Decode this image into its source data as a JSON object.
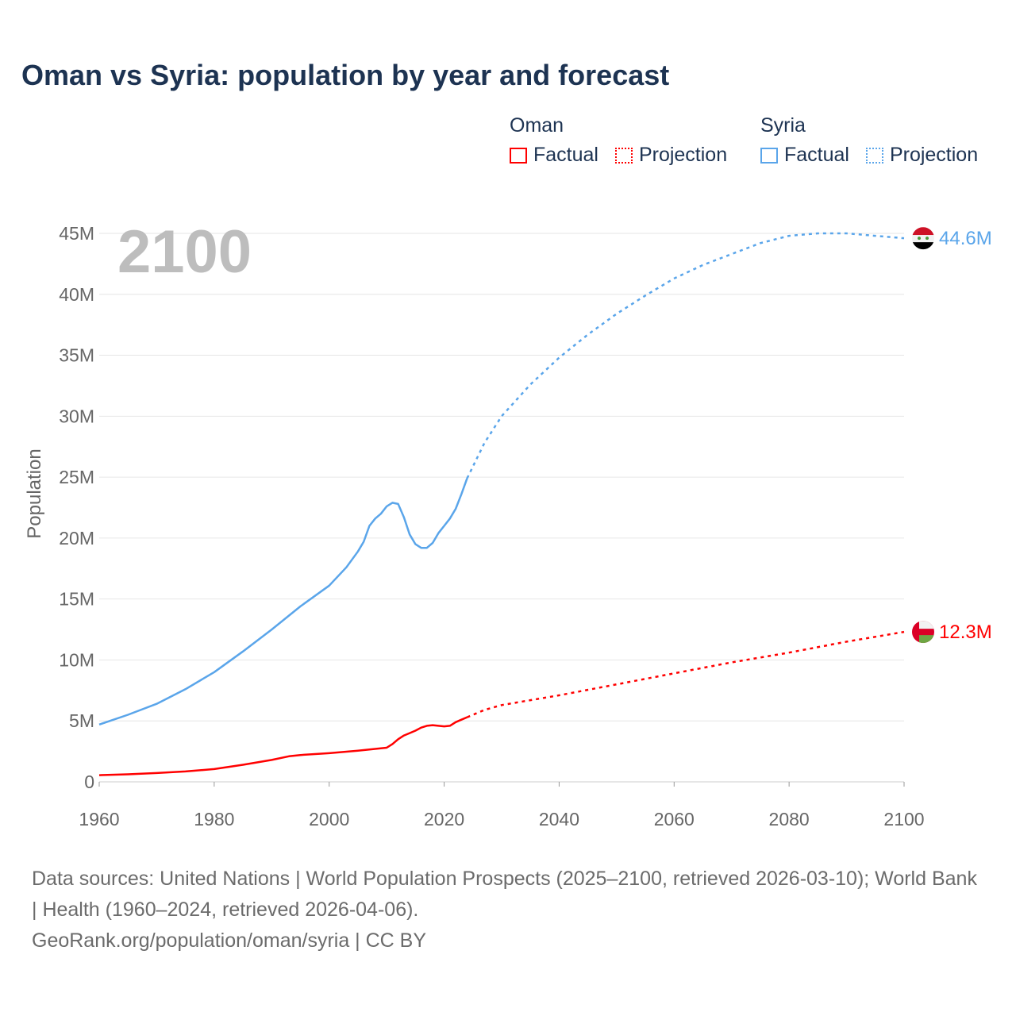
{
  "chart_data": {
    "type": "line",
    "title": "Oman vs Syria: population by year and forecast",
    "year_overlay": "2100",
    "ylabel": "Population",
    "xlabel": "",
    "xlim": [
      1960,
      2100
    ],
    "ylim": [
      0,
      45
    ],
    "x_ticks": [
      "1960",
      "1980",
      "2000",
      "2020",
      "2040",
      "2060",
      "2080",
      "2100"
    ],
    "y_ticks": [
      "0",
      "5M",
      "10M",
      "15M",
      "20M",
      "25M",
      "30M",
      "35M",
      "40M",
      "45M"
    ],
    "y_units": "millions",
    "grid": true,
    "legend_position": "top-right",
    "legend": {
      "groups": [
        {
          "name": "Oman",
          "color": "#ff0000",
          "items": [
            "Factual",
            "Projection"
          ]
        },
        {
          "name": "Syria",
          "color": "#5aa5ea",
          "items": [
            "Factual",
            "Projection"
          ]
        }
      ]
    },
    "series": [
      {
        "name": "Syria",
        "color": "#5aa5ea",
        "end_label": "44.6M",
        "flag": "syria-flag",
        "factual": [
          [
            1960,
            4.7
          ],
          [
            1965,
            5.5
          ],
          [
            1970,
            6.4
          ],
          [
            1975,
            7.6
          ],
          [
            1980,
            9.0
          ],
          [
            1985,
            10.7
          ],
          [
            1990,
            12.5
          ],
          [
            1995,
            14.4
          ],
          [
            2000,
            16.1
          ],
          [
            2003,
            17.6
          ],
          [
            2005,
            18.9
          ],
          [
            2006,
            19.7
          ],
          [
            2007,
            21.0
          ],
          [
            2008,
            21.6
          ],
          [
            2009,
            22.0
          ],
          [
            2010,
            22.6
          ],
          [
            2011,
            22.9
          ],
          [
            2012,
            22.8
          ],
          [
            2013,
            21.7
          ],
          [
            2014,
            20.3
          ],
          [
            2015,
            19.5
          ],
          [
            2016,
            19.2
          ],
          [
            2017,
            19.2
          ],
          [
            2018,
            19.6
          ],
          [
            2019,
            20.4
          ],
          [
            2020,
            21.0
          ],
          [
            2021,
            21.6
          ],
          [
            2022,
            22.4
          ],
          [
            2023,
            23.6
          ],
          [
            2024,
            24.9
          ]
        ],
        "projection": [
          [
            2024,
            24.9
          ],
          [
            2027,
            27.8
          ],
          [
            2030,
            30.0
          ],
          [
            2035,
            32.6
          ],
          [
            2040,
            34.8
          ],
          [
            2045,
            36.7
          ],
          [
            2050,
            38.4
          ],
          [
            2055,
            39.9
          ],
          [
            2060,
            41.3
          ],
          [
            2065,
            42.4
          ],
          [
            2070,
            43.3
          ],
          [
            2075,
            44.2
          ],
          [
            2080,
            44.8
          ],
          [
            2085,
            45.0
          ],
          [
            2090,
            45.0
          ],
          [
            2095,
            44.8
          ],
          [
            2100,
            44.6
          ]
        ]
      },
      {
        "name": "Oman",
        "color": "#ff0000",
        "end_label": "12.3M",
        "flag": "oman-flag",
        "factual": [
          [
            1960,
            0.55
          ],
          [
            1965,
            0.62
          ],
          [
            1970,
            0.72
          ],
          [
            1975,
            0.85
          ],
          [
            1980,
            1.05
          ],
          [
            1985,
            1.4
          ],
          [
            1990,
            1.8
          ],
          [
            1993,
            2.1
          ],
          [
            1995,
            2.2
          ],
          [
            2000,
            2.35
          ],
          [
            2005,
            2.55
          ],
          [
            2010,
            2.8
          ],
          [
            2011,
            3.1
          ],
          [
            2012,
            3.5
          ],
          [
            2013,
            3.8
          ],
          [
            2014,
            4.0
          ],
          [
            2015,
            4.2
          ],
          [
            2016,
            4.45
          ],
          [
            2017,
            4.6
          ],
          [
            2018,
            4.65
          ],
          [
            2019,
            4.6
          ],
          [
            2020,
            4.55
          ],
          [
            2021,
            4.6
          ],
          [
            2022,
            4.9
          ],
          [
            2023,
            5.1
          ],
          [
            2024,
            5.3
          ]
        ],
        "projection": [
          [
            2024,
            5.3
          ],
          [
            2027,
            5.9
          ],
          [
            2030,
            6.3
          ],
          [
            2035,
            6.7
          ],
          [
            2040,
            7.1
          ],
          [
            2050,
            8.0
          ],
          [
            2060,
            8.9
          ],
          [
            2070,
            9.8
          ],
          [
            2080,
            10.6
          ],
          [
            2090,
            11.5
          ],
          [
            2100,
            12.3
          ]
        ]
      }
    ]
  },
  "footer": {
    "sources": "Data sources: United Nations | World Population Prospects (2025–2100, retrieved 2026-03-10); World Bank | Health (1960–2024, retrieved 2026-04-06).",
    "link": "GeoRank.org/population/oman/syria | CC BY"
  }
}
